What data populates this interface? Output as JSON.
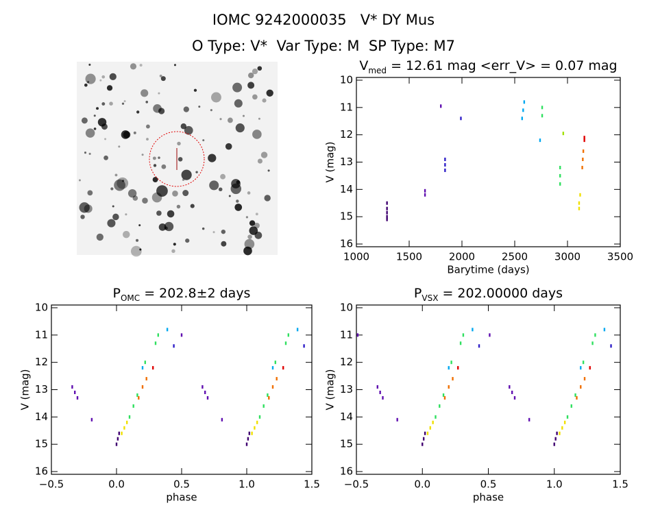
{
  "header": {
    "title": "IOMC 9242000035   V* DY Mus",
    "subtitle": "O Type: V*  Var Type: M  SP Type: M7"
  },
  "chart_data": [
    {
      "type": "scatter",
      "title": "V",
      "title_sub": "med",
      "title_tail": " = 12.61 mag <err_V> = 0.07 mag",
      "x_label": "Barytime (days)",
      "y_label": "V (mag)",
      "xlim": [
        1000,
        3500
      ],
      "xticks": [
        1000,
        1500,
        2000,
        2500,
        3000,
        3500
      ],
      "ylim": [
        16.1,
        9.9
      ],
      "yticks": [
        10,
        11,
        12,
        13,
        14,
        15,
        16
      ],
      "series": [
        {
          "color": "#400070",
          "x": [
            1290,
            1290,
            1290,
            1290,
            1290
          ],
          "values": [
            14.5,
            14.7,
            14.85,
            15.0,
            15.1
          ]
        },
        {
          "color": "#6010b0",
          "x": [
            1650,
            1650,
            1800
          ],
          "values": [
            14.05,
            14.2,
            10.95
          ]
        },
        {
          "color": "#3020c8",
          "x": [
            1840,
            1840,
            1840,
            1990
          ],
          "values": [
            12.9,
            13.1,
            13.3,
            11.4
          ]
        },
        {
          "color": "#00a8f0",
          "x": [
            2570,
            2580,
            2590,
            2740
          ],
          "values": [
            11.4,
            11.1,
            10.8,
            12.2
          ]
        },
        {
          "color": "#30e060",
          "x": [
            2760,
            2760,
            2930,
            2930,
            2930
          ],
          "values": [
            11.0,
            11.3,
            13.2,
            13.5,
            13.8
          ]
        },
        {
          "color": "#a0e000",
          "x": [
            2960
          ],
          "values": [
            11.95
          ]
        },
        {
          "color": "#f0e000",
          "x": [
            3110,
            3110,
            3120
          ],
          "values": [
            14.7,
            14.5,
            14.2
          ]
        },
        {
          "color": "#f07000",
          "x": [
            3140,
            3145,
            3150
          ],
          "values": [
            13.2,
            12.9,
            12.6
          ]
        },
        {
          "color": "#e00000",
          "x": [
            3160,
            3160
          ],
          "values": [
            12.1,
            12.2
          ]
        }
      ]
    },
    {
      "type": "scatter",
      "title": "P",
      "title_sub": "OMC",
      "title_tail": " = 202.8±2 days",
      "x_label": "phase",
      "y_label": "V (mag)",
      "xlim": [
        -0.5,
        1.5
      ],
      "xticks": [
        {
          "value": -0.5,
          "label": "−0.5"
        },
        {
          "value": 0,
          "label": "0.0"
        },
        0.5,
        {
          "value": 1,
          "label": "1.0"
        },
        1.5
      ],
      "ylim": [
        16.1,
        9.9
      ],
      "yticks": [
        10,
        11,
        12,
        13,
        14,
        15,
        16
      ],
      "series": [
        {
          "color": "#400070",
          "x": [
            0.0,
            0.01,
            0.02,
            1.0,
            1.01,
            1.02
          ],
          "values": [
            15.0,
            14.8,
            14.6,
            15.0,
            14.8,
            14.6
          ]
        },
        {
          "color": "#6010b0",
          "x": [
            -0.34,
            -0.32,
            -0.3,
            -0.19,
            0.5,
            0.66,
            0.68,
            0.7,
            0.81
          ],
          "values": [
            12.9,
            13.1,
            13.3,
            14.1,
            11.0,
            12.9,
            13.1,
            13.3,
            14.1
          ]
        },
        {
          "color": "#3020c8",
          "x": [
            0.44,
            1.44
          ],
          "values": [
            11.4,
            11.4
          ]
        },
        {
          "color": "#00a8f0",
          "x": [
            0.2,
            0.39,
            1.2,
            1.39
          ],
          "values": [
            12.2,
            10.8,
            12.2,
            10.8
          ]
        },
        {
          "color": "#30e060",
          "x": [
            0.1,
            0.13,
            0.16,
            0.22,
            0.3,
            0.32,
            1.1,
            1.13,
            1.16,
            1.22,
            1.3,
            1.32
          ],
          "values": [
            14.0,
            13.6,
            13.2,
            12.0,
            11.3,
            11.0,
            14.0,
            13.6,
            13.2,
            12.0,
            11.3,
            11.0
          ]
        },
        {
          "color": "#f0e000",
          "x": [
            0.04,
            0.06,
            0.08,
            1.04,
            1.06,
            1.08
          ],
          "values": [
            14.6,
            14.4,
            14.2,
            14.6,
            14.4,
            14.2
          ]
        },
        {
          "color": "#f07000",
          "x": [
            0.17,
            0.2,
            0.23,
            1.17,
            1.2,
            1.23
          ],
          "values": [
            13.3,
            12.9,
            12.6,
            13.3,
            12.9,
            12.6
          ]
        },
        {
          "color": "#e00000",
          "x": [
            0.28,
            1.28
          ],
          "values": [
            12.2,
            12.2
          ]
        }
      ]
    },
    {
      "type": "scatter",
      "title": "P",
      "title_sub": "VSX",
      "title_tail": " = 202.00000 days",
      "x_label": "phase",
      "y_label": "V (mag)",
      "xlim": [
        -0.5,
        1.5
      ],
      "xticks": [
        {
          "value": -0.5,
          "label": "−0.5"
        },
        {
          "value": 0,
          "label": "0.0"
        },
        0.5,
        {
          "value": 1,
          "label": "1.0"
        },
        1.5
      ],
      "ylim": [
        16.1,
        9.9
      ],
      "yticks": [
        10,
        11,
        12,
        13,
        14,
        15,
        16
      ],
      "series": [
        {
          "color": "#400070",
          "x": [
            0.0,
            0.01,
            0.02,
            1.0,
            1.01,
            1.02
          ],
          "values": [
            15.0,
            14.8,
            14.6,
            15.0,
            14.8,
            14.6
          ]
        },
        {
          "color": "#6010b0",
          "x": [
            -0.49,
            -0.34,
            -0.32,
            -0.3,
            -0.19,
            0.51,
            0.66,
            0.68,
            0.7,
            0.81
          ],
          "values": [
            11.0,
            12.9,
            13.1,
            13.3,
            14.1,
            11.0,
            12.9,
            13.1,
            13.3,
            14.1
          ]
        },
        {
          "color": "#3020c8",
          "x": [
            0.43,
            1.43
          ],
          "values": [
            11.4,
            11.4
          ]
        },
        {
          "color": "#00a8f0",
          "x": [
            0.2,
            0.38,
            1.2,
            1.38
          ],
          "values": [
            12.2,
            10.8,
            12.2,
            10.8
          ]
        },
        {
          "color": "#30e060",
          "x": [
            0.1,
            0.13,
            0.16,
            0.22,
            0.29,
            0.31,
            1.1,
            1.13,
            1.16,
            1.22,
            1.29,
            1.31
          ],
          "values": [
            14.0,
            13.6,
            13.2,
            12.0,
            11.3,
            11.0,
            14.0,
            13.6,
            13.2,
            12.0,
            11.3,
            11.0
          ]
        },
        {
          "color": "#f0e000",
          "x": [
            0.04,
            0.06,
            0.08,
            1.04,
            1.06,
            1.08
          ],
          "values": [
            14.6,
            14.4,
            14.2,
            14.6,
            14.4,
            14.2
          ]
        },
        {
          "color": "#f07000",
          "x": [
            0.17,
            0.2,
            0.23,
            1.17,
            1.2,
            1.23
          ],
          "values": [
            13.3,
            12.9,
            12.6,
            13.3,
            12.9,
            12.6
          ]
        },
        {
          "color": "#e00000",
          "x": [
            0.27,
            1.27
          ],
          "values": [
            12.2,
            12.2
          ]
        }
      ]
    }
  ]
}
